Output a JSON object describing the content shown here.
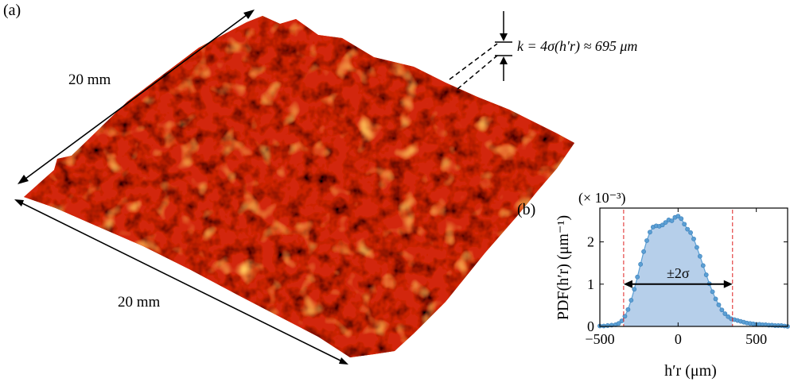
{
  "panel_a": {
    "label": "(a)",
    "dimension_top": "20 mm",
    "dimension_bottom": "20 mm",
    "roughness_label": "k = 4σ(h′r) ≈ 695 μm",
    "surface_color": "#d2280c"
  },
  "panel_b": {
    "label": "(b)",
    "marker_color": "#5b9fd4",
    "fill_color": "#b6cfea",
    "limit_color": "#e02020",
    "sigma_label": "±2σ"
  },
  "chart_data": {
    "type": "area",
    "title": "",
    "multiplier": "(× 10⁻³)",
    "xlabel": "h′r (μm)",
    "ylabel": "PDF(h′r) (μm⁻¹)",
    "xlim": [
      -500,
      700
    ],
    "ylim": [
      0,
      2.8
    ],
    "xticks": [
      -500,
      0,
      500
    ],
    "yticks": [
      0,
      1,
      2
    ],
    "grid": false,
    "legend": "none",
    "two_sigma_bounds": [
      -348,
      348
    ],
    "annotation": "±2σ",
    "series": [
      {
        "x": [
          -600,
          -575,
          -550,
          -525,
          -500,
          -475,
          -450,
          -425,
          -400,
          -380,
          -360,
          -340,
          -320,
          -300,
          -280,
          -260,
          -240,
          -220,
          -200,
          -180,
          -160,
          -140,
          -120,
          -100,
          -80,
          -60,
          -40,
          -20,
          0,
          20,
          40,
          60,
          80,
          100,
          120,
          140,
          160,
          180,
          200,
          220,
          240,
          260,
          280,
          300,
          320,
          340,
          360,
          380,
          400,
          420,
          440,
          460,
          480,
          500,
          520,
          540,
          560,
          580,
          600,
          620,
          640,
          660,
          680,
          700
        ],
        "y": [
          0.0,
          0.0,
          0.0,
          0.01,
          0.01,
          0.01,
          0.02,
          0.03,
          0.04,
          0.07,
          0.13,
          0.24,
          0.4,
          0.62,
          0.88,
          1.17,
          1.47,
          1.77,
          2.03,
          2.23,
          2.35,
          2.38,
          2.37,
          2.4,
          2.46,
          2.52,
          2.5,
          2.58,
          2.61,
          2.55,
          2.42,
          2.3,
          2.22,
          2.07,
          1.87,
          1.66,
          1.44,
          1.22,
          1.01,
          0.82,
          0.65,
          0.51,
          0.39,
          0.3,
          0.23,
          0.18,
          0.16,
          0.14,
          0.12,
          0.1,
          0.08,
          0.07,
          0.06,
          0.05,
          0.05,
          0.04,
          0.04,
          0.03,
          0.03,
          0.02,
          0.02,
          0.02,
          0.01,
          0.0
        ]
      }
    ]
  }
}
